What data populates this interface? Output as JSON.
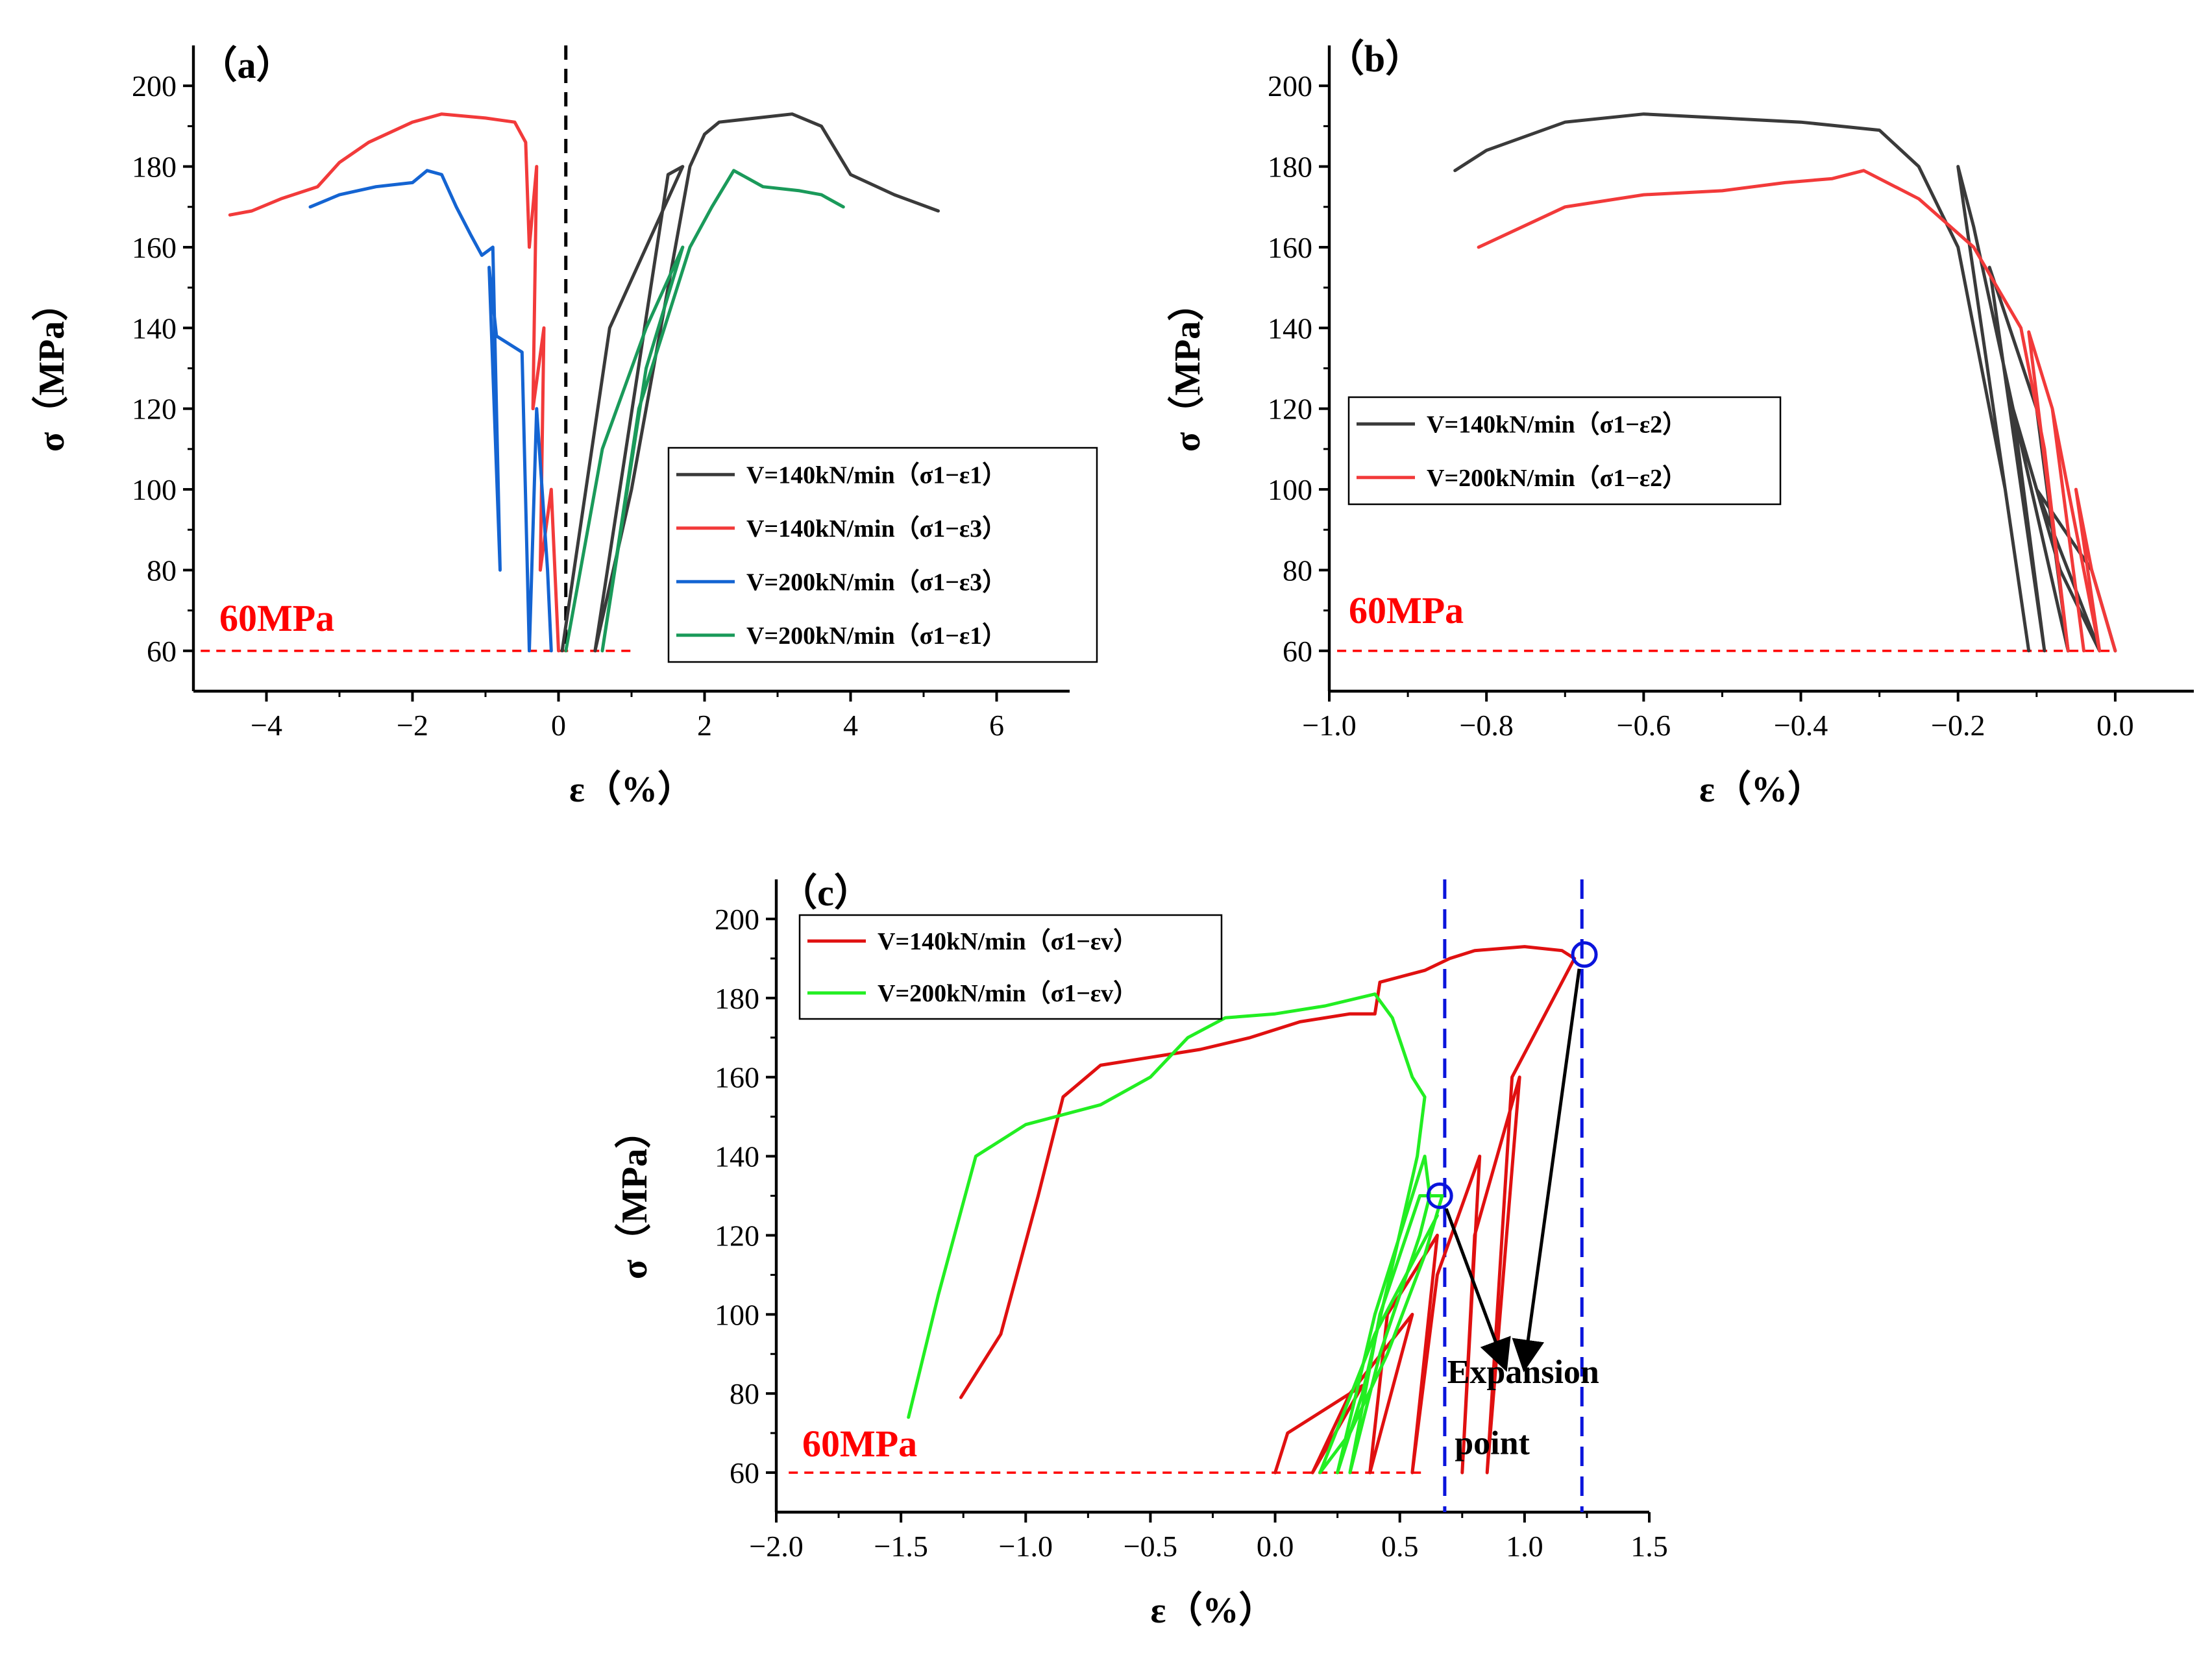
{
  "chart_data": [
    {
      "id": "a",
      "type": "line",
      "panel_label": "（a）",
      "xlabel": "ε（%）",
      "ylabel": "σ（MPa）",
      "xlim": [
        -5,
        7
      ],
      "ylim": [
        50,
        210
      ],
      "xticks": [
        -4,
        -2,
        0,
        2,
        4,
        6
      ],
      "xtick_labels": [
        "−4",
        "−2",
        "0",
        "2",
        "4",
        "6"
      ],
      "yticks": [
        60,
        80,
        100,
        120,
        140,
        160,
        180,
        200
      ],
      "ytick_labels": [
        "60",
        "80",
        "100",
        "120",
        "140",
        "160",
        "180",
        "200"
      ],
      "reference_line": {
        "y": 60,
        "label": "60MPa",
        "x_range": [
          -4.9,
          1.0
        ],
        "color": "#ff0000"
      },
      "vertical_line": {
        "x": 0.1,
        "color": "#000000"
      },
      "legend": {
        "position": "right"
      },
      "series": [
        {
          "name": "V=140kN/min（σ1−ε1）",
          "color": "#3a3a3a",
          "x": [
            0.05,
            0.7,
            1.7,
            1.5,
            0.5,
            1.0,
            1.8,
            2.0,
            2.2,
            3.2,
            3.6,
            4.0,
            4.6,
            5.2
          ],
          "y": [
            60,
            140,
            180,
            178,
            60,
            100,
            180,
            188,
            191,
            193,
            190,
            178,
            173,
            169
          ]
        },
        {
          "name": "V=140kN/min（σ1−ε3）",
          "color": "#f23a3a",
          "x": [
            -4.5,
            -4.2,
            -3.8,
            -3.3,
            -3.0,
            -2.6,
            -2.0,
            -1.6,
            -1.0,
            -0.6,
            -0.45,
            -0.4,
            -0.3,
            -0.35,
            -0.2,
            -0.25,
            -0.1,
            0.0
          ],
          "y": [
            168,
            169,
            172,
            175,
            181,
            186,
            191,
            193,
            192,
            191,
            186,
            160,
            180,
            120,
            140,
            80,
            100,
            60
          ]
        },
        {
          "name": "V=200kN/min（σ1−ε3）",
          "color": "#1464d2",
          "x": [
            -3.4,
            -3.0,
            -2.5,
            -2.0,
            -1.8,
            -1.6,
            -1.4,
            -1.2,
            -1.05,
            -0.9,
            -0.8,
            -0.95,
            -0.85,
            -0.5,
            -0.4,
            -0.3,
            -0.15,
            -0.1
          ],
          "y": [
            170,
            173,
            175,
            176,
            179,
            178,
            170,
            163,
            158,
            160,
            80,
            155,
            138,
            134,
            60,
            120,
            80,
            60
          ]
        },
        {
          "name": "V=200kN/min（σ1−ε1）",
          "color": "#1a9a5a",
          "x": [
            0.1,
            0.6,
            1.2,
            1.7,
            1.2,
            0.6,
            1.1,
            1.8,
            2.1,
            2.4,
            2.6,
            2.8,
            3.3,
            3.6,
            3.9
          ],
          "y": [
            60,
            110,
            140,
            160,
            130,
            60,
            120,
            160,
            170,
            179,
            177,
            175,
            174,
            173,
            170
          ]
        }
      ]
    },
    {
      "id": "b",
      "type": "line",
      "panel_label": "（b）",
      "xlabel": "ε（%）",
      "ylabel": "σ（MPa）",
      "xlim": [
        -1.0,
        0.1
      ],
      "ylim": [
        50,
        210
      ],
      "xticks": [
        -1.0,
        -0.8,
        -0.6,
        -0.4,
        -0.2,
        0.0
      ],
      "xtick_labels": [
        "−1.0",
        "−0.8",
        "−0.6",
        "−0.4",
        "−0.2",
        "0.0"
      ],
      "yticks": [
        60,
        80,
        100,
        120,
        140,
        160,
        180,
        200
      ],
      "ytick_labels": [
        "60",
        "80",
        "100",
        "120",
        "140",
        "160",
        "180",
        "200"
      ],
      "reference_line": {
        "y": 60,
        "label": "60MPa",
        "x_range": [
          -0.99,
          0.0
        ],
        "color": "#ff0000"
      },
      "legend": {
        "position": "left"
      },
      "series": [
        {
          "name": "V=140kN/min（σ1−ε2）",
          "color": "#3a3a3a",
          "x": [
            -0.84,
            -0.8,
            -0.7,
            -0.6,
            -0.5,
            -0.4,
            -0.3,
            -0.25,
            -0.2,
            -0.14,
            -0.11,
            -0.2,
            -0.18,
            -0.13,
            -0.09,
            -0.16,
            -0.1,
            -0.06,
            -0.13,
            -0.07,
            -0.02,
            -0.1,
            -0.03,
            0.0
          ],
          "y": [
            179,
            184,
            191,
            193,
            192,
            191,
            189,
            180,
            160,
            100,
            60,
            180,
            165,
            120,
            60,
            155,
            120,
            60,
            120,
            80,
            60,
            100,
            80,
            60
          ]
        },
        {
          "name": "V=200kN/min（σ1−ε2）",
          "color": "#f23a3a",
          "x": [
            -0.81,
            -0.7,
            -0.6,
            -0.5,
            -0.42,
            -0.36,
            -0.32,
            -0.25,
            -0.18,
            -0.12,
            -0.09,
            -0.06,
            -0.11,
            -0.08,
            -0.04,
            -0.08,
            -0.06,
            -0.02,
            -0.05,
            -0.03,
            0.0
          ],
          "y": [
            160,
            170,
            173,
            174,
            176,
            177,
            179,
            172,
            160,
            140,
            110,
            60,
            139,
            120,
            60,
            120,
            100,
            60,
            100,
            80,
            60
          ]
        }
      ]
    },
    {
      "id": "c",
      "type": "line",
      "panel_label": "（c）",
      "xlabel": "ε（%）",
      "ylabel": "σ（MPa）",
      "xlim": [
        -2.0,
        1.5
      ],
      "ylim": [
        50,
        210
      ],
      "xticks": [
        -2.0,
        -1.5,
        -1.0,
        -0.5,
        0.0,
        0.5,
        1.0,
        1.5
      ],
      "xtick_labels": [
        "−2.0",
        "−1.5",
        "−1.0",
        "−0.5",
        "0.0",
        "0.5",
        "1.0",
        "1.5"
      ],
      "yticks": [
        60,
        80,
        100,
        120,
        140,
        160,
        180,
        200
      ],
      "ytick_labels": [
        "60",
        "80",
        "100",
        "120",
        "140",
        "160",
        "180",
        "200"
      ],
      "reference_line": {
        "y": 60,
        "label": "60MPa",
        "x_range": [
          -1.95,
          0.6
        ],
        "color": "#ff0000"
      },
      "vertical_lines": [
        {
          "x": 0.68,
          "color": "#0a14dc"
        },
        {
          "x": 1.23,
          "color": "#0a14dc"
        }
      ],
      "annotation": {
        "lines": [
          "Expansion",
          "point"
        ],
        "points": [
          {
            "x": 0.66,
            "y": 130
          },
          {
            "x": 1.24,
            "y": 191
          }
        ]
      },
      "legend": {
        "position": "top-left"
      },
      "series": [
        {
          "name": "V=140kN/min（σ1−εv）",
          "color": "#e01010",
          "x": [
            -1.26,
            -1.1,
            -0.95,
            -0.85,
            -0.7,
            -0.5,
            -0.3,
            -0.1,
            0.1,
            0.3,
            0.4,
            0.42,
            0.6,
            0.7,
            0.8,
            1.0,
            1.15,
            1.2,
            0.95,
            0.85,
            0.98,
            0.8,
            0.75,
            0.82,
            0.65,
            0.55,
            0.65,
            0.45,
            0.38,
            0.55,
            0.3,
            0.15,
            0.35,
            0.05,
            0.0
          ],
          "y": [
            79,
            95,
            130,
            155,
            163,
            165,
            167,
            170,
            174,
            176,
            176,
            184,
            187,
            190,
            192,
            193,
            192,
            190,
            160,
            60,
            160,
            120,
            60,
            140,
            110,
            60,
            120,
            100,
            60,
            100,
            80,
            60,
            82,
            70,
            60
          ]
        },
        {
          "name": "V=200kN/min（σ1−εv）",
          "color": "#22ee22",
          "x": [
            -1.47,
            -1.35,
            -1.2,
            -1.0,
            -0.7,
            -0.5,
            -0.35,
            -0.2,
            0.0,
            0.2,
            0.4,
            0.47,
            0.55,
            0.6,
            0.57,
            0.48,
            0.35,
            0.25,
            0.4,
            0.6,
            0.62,
            0.58,
            0.42,
            0.3,
            0.42,
            0.58,
            0.67,
            0.6,
            0.45,
            0.3,
            0.18,
            0.4,
            0.65
          ],
          "y": [
            74,
            105,
            140,
            148,
            153,
            160,
            170,
            175,
            176,
            178,
            181,
            175,
            160,
            155,
            140,
            115,
            80,
            60,
            100,
            140,
            130,
            120,
            90,
            60,
            100,
            130,
            130,
            115,
            90,
            70,
            60,
            95,
            125
          ]
        }
      ]
    }
  ]
}
